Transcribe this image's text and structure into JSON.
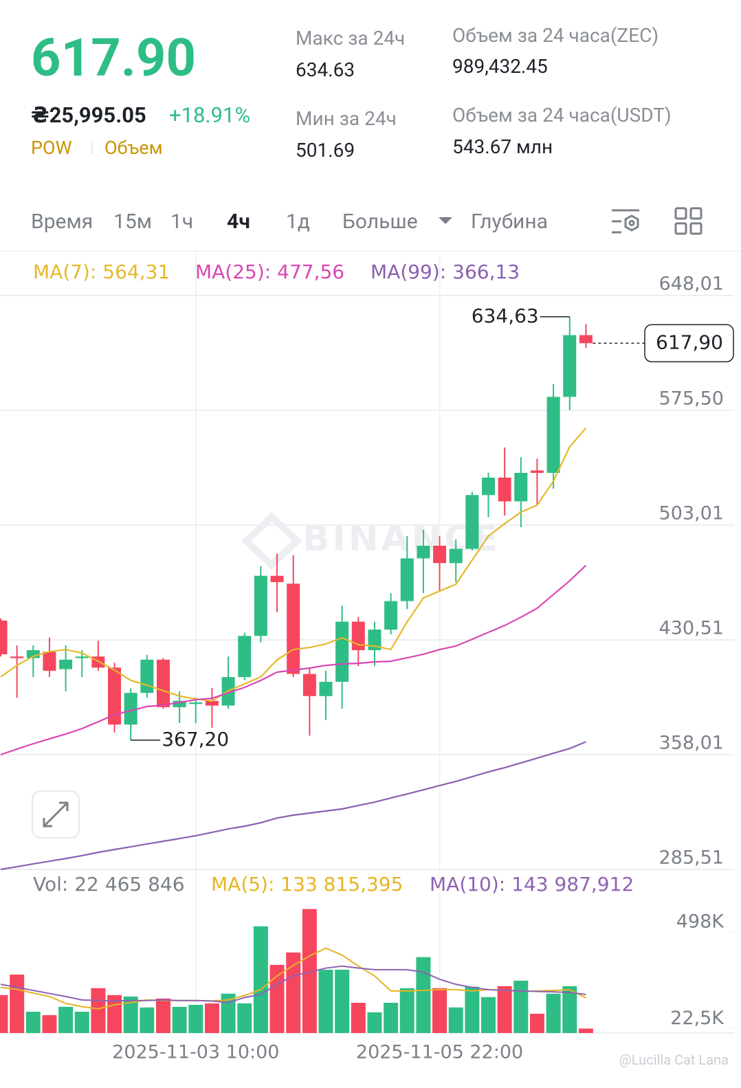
{
  "header": {
    "price": "617.90",
    "fiat": "₴25,995.05",
    "change": "+18.91%",
    "tags": [
      "POW",
      "Объем"
    ],
    "stats": [
      {
        "label": "Макс за 24ч",
        "value": "634.63"
      },
      {
        "label": "Мин за 24ч",
        "value": "501.69"
      },
      {
        "label": "Объем за 24 часа(ZEC)",
        "value": "989,432.45"
      },
      {
        "label": "Объем за 24 часа(USDT)",
        "value": "543.67 млн"
      }
    ]
  },
  "tabs": {
    "items": [
      "Время",
      "15м",
      "1ч",
      "4ч",
      "1д",
      "Больше",
      "Глубина"
    ],
    "active": 3
  },
  "credit": "@Lucilla Cat Lana",
  "chart_data": [
    {
      "type": "candlestick",
      "watermark": "BINANCE",
      "categories": [
        null,
        null,
        null,
        null,
        null,
        null,
        null,
        null,
        null,
        null,
        null,
        null,
        "2025-11-03 10:00",
        null,
        null,
        null,
        null,
        null,
        null,
        null,
        null,
        null,
        null,
        null,
        null,
        null,
        null,
        "2025-11-05 22:00",
        null,
        null,
        null,
        null,
        null,
        null,
        null,
        null,
        null
      ],
      "open": [
        442.7,
        420,
        419,
        423,
        412,
        419,
        420,
        413,
        377,
        397,
        418,
        388,
        390,
        392,
        389,
        407,
        433,
        471,
        466,
        409,
        395,
        404,
        442,
        424,
        437,
        455,
        482,
        490,
        479,
        488,
        522,
        533,
        518,
        537.5,
        536,
        584,
        623
      ],
      "high": [
        444,
        427,
        427,
        432,
        427,
        424,
        430,
        416,
        400,
        421,
        419,
        398,
        394,
        400,
        420,
        435,
        477,
        485,
        484,
        413,
        411,
        452,
        445,
        442,
        460,
        496,
        500,
        496,
        494,
        524,
        536,
        552,
        546,
        545,
        592,
        634.63,
        630
      ],
      "low": [
        420,
        394,
        407,
        407,
        398,
        407,
        411,
        372,
        367.2,
        394,
        387,
        378,
        378,
        375,
        387,
        405,
        429,
        448,
        407,
        370,
        380,
        387,
        414,
        414,
        434,
        450,
        460,
        461,
        467,
        487,
        508,
        509,
        501.69,
        516,
        526,
        575.5,
        615
      ],
      "close": [
        421.4,
        419,
        424,
        411,
        418,
        420,
        413,
        377,
        397,
        418,
        388,
        392,
        391,
        389,
        407,
        433,
        471,
        467,
        409,
        395,
        404,
        442,
        424,
        437,
        455,
        482,
        490,
        479,
        488,
        522,
        533,
        518,
        536,
        536,
        584,
        623,
        617.9
      ],
      "up_color": "#2ebd85",
      "down_color": "#f6465d",
      "series": [
        {
          "name": "MA(7): 564,31",
          "color": "#e5b82a",
          "values": [
            407.1,
            414.4,
            420.1,
            423.1,
            424.4,
            422.2,
            417.0,
            411.4,
            404.9,
            401.9,
            398.4,
            395.0,
            393.2,
            391.9,
            398.4,
            402.7,
            407.1,
            417.9,
            424.4,
            425.7,
            427.9,
            431.8,
            427.5,
            426.6,
            424.4,
            441.8,
            457.0,
            461.3,
            465.6,
            480.8,
            496.1,
            503.9,
            511.2,
            515.6,
            530.8,
            552.5,
            564.3
          ]
        },
        {
          "name": "MA(25): 477,56",
          "color": "#d946b3",
          "values": [
            358.0,
            361.5,
            364.9,
            368.0,
            371.0,
            374.5,
            378.8,
            383.2,
            385.8,
            388.4,
            389.3,
            391.0,
            392.7,
            393.6,
            397.1,
            400.5,
            404.9,
            410.1,
            411.4,
            412.7,
            414.4,
            415.3,
            415.7,
            416.6,
            417.0,
            419.2,
            421.4,
            424.4,
            426.6,
            430.9,
            435.3,
            439.6,
            444.8,
            450.5,
            459.2,
            467.8,
            477.6
          ]
        },
        {
          "name": "MA(99): 366,13",
          "color": "#8b5fb0",
          "values": [
            285.5,
            287.2,
            289.0,
            290.7,
            292.4,
            294.2,
            296.3,
            298.1,
            299.8,
            301.6,
            303.3,
            305.0,
            306.8,
            308.9,
            311.1,
            312.8,
            315.0,
            318.0,
            319.8,
            321.1,
            322.4,
            323.7,
            325.9,
            328.0,
            330.6,
            333.2,
            335.8,
            338.5,
            341.1,
            344.1,
            347.1,
            349.8,
            352.8,
            355.8,
            358.9,
            361.9,
            366.1
          ]
        }
      ],
      "ylim": [
        283.33,
        674.06
      ],
      "yticks": [
        {
          "value": 648.01,
          "label": "648,01"
        },
        {
          "value": 575.5,
          "label": "575,50"
        },
        {
          "value": 503.01,
          "label": "503,01"
        },
        {
          "value": 430.51,
          "label": "430,51"
        },
        {
          "value": 358.01,
          "label": "358,01"
        },
        {
          "value": 285.51,
          "label": "285,51"
        }
      ],
      "grid": true,
      "annotations": [
        {
          "value": 634.63,
          "label": "634,63"
        },
        {
          "value": 367.2,
          "label": "367,20"
        }
      ],
      "last_price": {
        "value": 617.9,
        "label": "617,90"
      }
    },
    {
      "type": "bar",
      "title": "Vol: 22 465 846",
      "values": [
        187,
        288,
        105,
        88,
        129,
        105,
        221,
        187,
        180,
        126,
        170,
        129,
        139,
        146,
        194,
        146,
        526,
        336,
        397,
        611,
        312,
        312,
        149,
        102,
        149,
        221,
        374,
        221,
        126,
        228,
        177,
        231,
        258,
        95,
        194,
        231,
        22
      ],
      "series": [
        {
          "name": "MA(5): 133 815,395",
          "color": "#e6b422",
          "values": [
            225,
            215,
            197,
            180,
            146,
            130,
            119,
            139,
            150,
            163,
            160,
            160,
            160,
            158,
            163,
            185,
            214,
            282,
            333,
            380,
            418,
            384,
            330,
            282,
            207,
            207,
            210,
            214,
            214,
            207,
            214,
            210,
            207,
            207,
            210,
            214,
            173
          ]
        },
        {
          "name": "MA(10): 143 987,912",
          "color": "#8e62b3",
          "values": [
            240,
            225,
            210,
            195,
            180,
            163,
            160,
            158,
            160,
            160,
            163,
            160,
            160,
            158,
            150,
            175,
            190,
            240,
            282,
            300,
            320,
            330,
            320,
            312,
            312,
            312,
            300,
            265,
            240,
            225,
            214,
            210,
            207,
            205,
            203,
            200,
            190
          ]
        }
      ],
      "ylim": [
        0,
        620
      ],
      "yticks": [
        {
          "value": 498,
          "label": "498K"
        },
        {
          "value": 22.5,
          "label": "22,5K"
        }
      ]
    }
  ]
}
